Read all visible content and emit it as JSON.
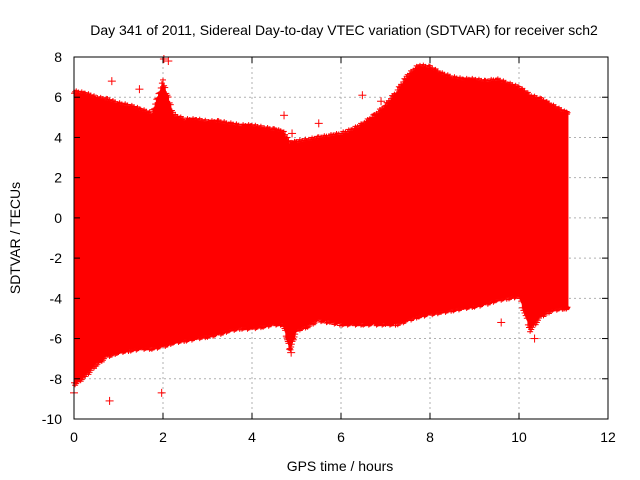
{
  "chart_data": {
    "type": "scatter",
    "title": "Day 341 of 2011, Sidereal Day-to-day VTEC variation (SDTVAR) for receiver sch2",
    "xlabel": "GPS time / hours",
    "ylabel": "SDTVAR / TECUs",
    "xlim": [
      0,
      12
    ],
    "ylim": [
      -10,
      8
    ],
    "xticks": [
      "0",
      "2",
      "4",
      "6",
      "8",
      "10",
      "12"
    ],
    "yticks": [
      "-10",
      "-8",
      "-6",
      "-4",
      "-2",
      "0",
      "2",
      "4",
      "6",
      "8"
    ],
    "grid": true,
    "marker": "+",
    "series": [
      {
        "name": "SDTVAR",
        "color": "#ff0000",
        "x": [
          0.0,
          0.25,
          0.5,
          0.75,
          1.0,
          1.25,
          1.5,
          1.75,
          2.0,
          2.25,
          2.5,
          2.75,
          3.0,
          3.25,
          3.5,
          3.75,
          4.0,
          4.25,
          4.5,
          4.7,
          4.85,
          5.0,
          5.25,
          5.5,
          5.75,
          6.0,
          6.25,
          6.5,
          6.75,
          7.0,
          7.25,
          7.5,
          7.75,
          8.0,
          8.25,
          8.5,
          8.75,
          9.0,
          9.25,
          9.5,
          9.75,
          10.0,
          10.25,
          10.5,
          10.75,
          11.0,
          11.1
        ],
        "upper": [
          6.2,
          6.1,
          5.9,
          5.8,
          5.6,
          5.5,
          5.3,
          5.1,
          6.7,
          5.0,
          4.8,
          4.8,
          4.7,
          4.7,
          4.6,
          4.5,
          4.5,
          4.4,
          4.3,
          4.2,
          3.6,
          3.7,
          3.8,
          3.9,
          4.0,
          4.1,
          4.3,
          4.6,
          5.0,
          5.5,
          6.2,
          7.0,
          7.5,
          7.4,
          7.1,
          6.9,
          6.8,
          6.8,
          6.7,
          6.8,
          6.6,
          6.4,
          6.0,
          5.8,
          5.5,
          5.2,
          5.1
        ],
        "lower": [
          -8.2,
          -7.8,
          -7.2,
          -6.8,
          -6.6,
          -6.5,
          -6.4,
          -6.4,
          -6.3,
          -6.1,
          -6.0,
          -5.9,
          -5.8,
          -5.7,
          -5.5,
          -5.4,
          -5.4,
          -5.3,
          -5.2,
          -5.2,
          -6.5,
          -5.5,
          -5.3,
          -5.0,
          -5.1,
          -5.2,
          -5.2,
          -5.2,
          -5.2,
          -5.2,
          -5.2,
          -5.0,
          -4.8,
          -4.7,
          -4.6,
          -4.5,
          -4.4,
          -4.3,
          -4.2,
          -4.0,
          -3.9,
          -3.8,
          -5.5,
          -4.8,
          -4.5,
          -4.4,
          -4.4
        ]
      }
    ],
    "outliers": [
      {
        "x": 0.8,
        "y": -9.1
      },
      {
        "x": 1.97,
        "y": -8.7
      },
      {
        "x": 0.0,
        "y": -8.7
      },
      {
        "x": 0.85,
        "y": 6.8
      },
      {
        "x": 1.47,
        "y": 6.4
      },
      {
        "x": 1.4,
        "y": 5.3
      },
      {
        "x": 2.02,
        "y": 7.9
      },
      {
        "x": 2.12,
        "y": 7.8
      },
      {
        "x": 4.72,
        "y": 5.1
      },
      {
        "x": 4.9,
        "y": 4.2
      },
      {
        "x": 5.5,
        "y": 4.7
      },
      {
        "x": 6.48,
        "y": 6.1
      },
      {
        "x": 6.9,
        "y": 5.8
      },
      {
        "x": 9.6,
        "y": -5.2
      },
      {
        "x": 10.35,
        "y": -6.0
      },
      {
        "x": 4.88,
        "y": -6.7
      },
      {
        "x": 9.6,
        "y": 6.3
      }
    ]
  }
}
